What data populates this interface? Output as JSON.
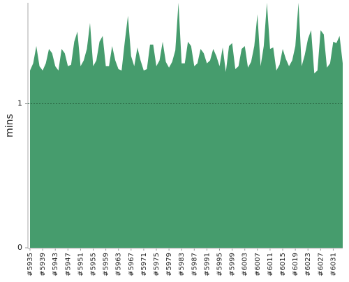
{
  "chart_data": {
    "type": "area",
    "y_label": "mins",
    "color": "#469c6d",
    "categories": [
      "#5935",
      null,
      null,
      null,
      "#5939",
      null,
      null,
      null,
      "#5943",
      null,
      null,
      null,
      "#5947",
      null,
      null,
      null,
      "#5951",
      null,
      null,
      null,
      "#5955",
      null,
      null,
      null,
      "#5959",
      null,
      null,
      null,
      "#5963",
      null,
      null,
      null,
      "#5967",
      null,
      null,
      null,
      "#5971",
      null,
      null,
      null,
      "#5975",
      null,
      null,
      null,
      "#5979",
      null,
      null,
      null,
      "#5983",
      null,
      null,
      null,
      "#5987",
      null,
      null,
      null,
      "#5991",
      null,
      null,
      null,
      "#5995",
      null,
      null,
      null,
      "#5999",
      null,
      null,
      null,
      "#6003",
      null,
      null,
      null,
      "#6007",
      null,
      null,
      null,
      "#6011",
      null,
      null,
      null,
      "#6015",
      null,
      null,
      null,
      "#6019",
      null,
      null,
      null,
      "#6023",
      null,
      null,
      null,
      "#6027",
      null,
      null,
      null,
      "#6031",
      null,
      null,
      null
    ],
    "values": [
      1.23,
      1.28,
      1.4,
      1.26,
      1.23,
      1.28,
      1.38,
      1.35,
      1.26,
      1.23,
      1.38,
      1.35,
      1.26,
      1.27,
      1.43,
      1.5,
      1.26,
      1.3,
      1.38,
      1.56,
      1.26,
      1.3,
      1.43,
      1.47,
      1.26,
      1.26,
      1.4,
      1.3,
      1.24,
      1.23,
      1.43,
      1.61,
      1.33,
      1.26,
      1.39,
      1.3,
      1.23,
      1.24,
      1.41,
      1.41,
      1.26,
      1.3,
      1.43,
      1.29,
      1.25,
      1.29,
      1.37,
      1.7,
      1.28,
      1.28,
      1.43,
      1.4,
      1.26,
      1.28,
      1.38,
      1.35,
      1.28,
      1.3,
      1.38,
      1.33,
      1.26,
      1.39,
      1.22,
      1.4,
      1.42,
      1.24,
      1.26,
      1.38,
      1.4,
      1.25,
      1.29,
      1.4,
      1.62,
      1.26,
      1.4,
      1.7,
      1.38,
      1.39,
      1.23,
      1.27,
      1.38,
      1.31,
      1.26,
      1.3,
      1.4,
      1.7,
      1.26,
      1.34,
      1.45,
      1.51,
      1.21,
      1.23,
      1.51,
      1.48,
      1.25,
      1.28,
      1.43,
      1.42,
      1.47,
      1.28
    ],
    "ylim": [
      0,
      1.7
    ],
    "yticks": [
      0,
      1
    ],
    "grid": true
  }
}
